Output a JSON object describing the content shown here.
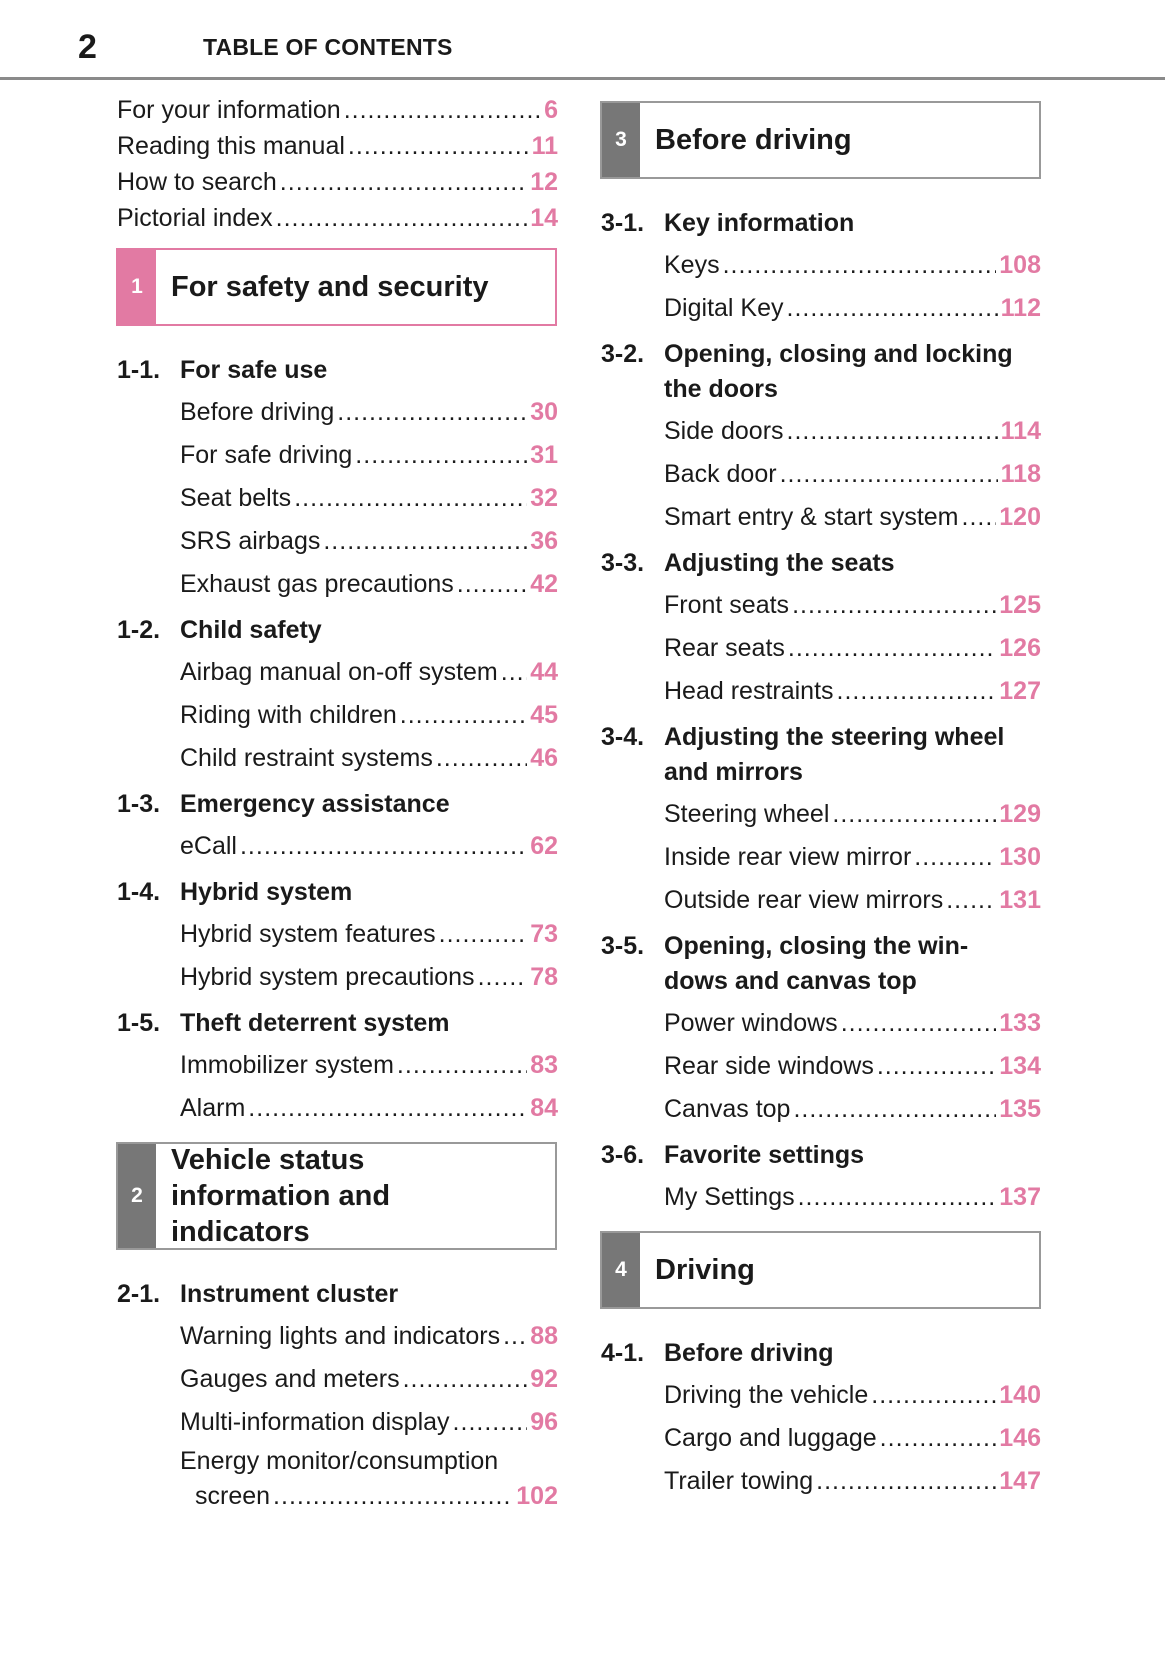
{
  "header": {
    "page_number": "2",
    "title": "TABLE OF CONTENTS"
  },
  "colors": {
    "accent_pink": "#e27aa3",
    "tab_gray": "#777777",
    "border_gray": "#999999"
  },
  "columns": [
    {
      "blocks": [
        {
          "type": "entries",
          "items": [
            {
              "label": "For your information",
              "page": "6"
            },
            {
              "label": "Reading this manual",
              "page": "11"
            },
            {
              "label": "How to search",
              "page": "12"
            },
            {
              "label": "Pictorial index",
              "page": "14"
            }
          ]
        },
        {
          "type": "chapter",
          "number": "1",
          "title_lines": [
            "For safety and security"
          ],
          "color": "#e27aa3",
          "border": "#e27aa3"
        },
        {
          "type": "section",
          "number": "1-1.",
          "title_lines": [
            "For safe use"
          ],
          "items": [
            {
              "label": "Before driving",
              "page": "30"
            },
            {
              "label": "For safe driving",
              "page": "31"
            },
            {
              "label": "Seat belts",
              "page": "32"
            },
            {
              "label": "SRS airbags",
              "page": "36"
            },
            {
              "label": "Exhaust gas precautions",
              "page": "42"
            }
          ]
        },
        {
          "type": "section",
          "number": "1-2.",
          "title_lines": [
            "Child safety"
          ],
          "items": [
            {
              "label": "Airbag manual on-off system",
              "page": "44"
            },
            {
              "label": "Riding with children",
              "page": "45"
            },
            {
              "label": "Child restraint systems",
              "page": "46"
            }
          ]
        },
        {
          "type": "section",
          "number": "1-3.",
          "title_lines": [
            "Emergency assistance"
          ],
          "items": [
            {
              "label": "eCall",
              "page": "62"
            }
          ]
        },
        {
          "type": "section",
          "number": "1-4.",
          "title_lines": [
            "Hybrid system"
          ],
          "items": [
            {
              "label": "Hybrid system features",
              "page": "73"
            },
            {
              "label": "Hybrid system precautions",
              "page": "78"
            }
          ]
        },
        {
          "type": "section",
          "number": "1-5.",
          "title_lines": [
            "Theft deterrent system"
          ],
          "items": [
            {
              "label": "Immobilizer system",
              "page": "83"
            },
            {
              "label": "Alarm",
              "page": "84"
            }
          ]
        },
        {
          "type": "chapter",
          "number": "2",
          "title_lines": [
            "Vehicle status",
            "information and",
            "indicators"
          ],
          "color": "#777777",
          "border": "#999999"
        },
        {
          "type": "section",
          "number": "2-1.",
          "title_lines": [
            "Instrument cluster"
          ],
          "items": [
            {
              "label": "Warning lights and indicators",
              "page": "88"
            },
            {
              "label": "Gauges and meters",
              "page": "92"
            },
            {
              "label": "Multi-information display",
              "page": "96"
            },
            {
              "label": "Energy monitor/consumption",
              "label2": "screen",
              "page": "102"
            }
          ]
        }
      ]
    },
    {
      "blocks": [
        {
          "type": "chapter",
          "number": "3",
          "title_lines": [
            "Before driving"
          ],
          "color": "#777777",
          "border": "#999999"
        },
        {
          "type": "section",
          "number": "3-1.",
          "title_lines": [
            "Key information"
          ],
          "items": [
            {
              "label": "Keys",
              "page": "108"
            },
            {
              "label": "Digital Key",
              "page": "112"
            }
          ]
        },
        {
          "type": "section",
          "number": "3-2.",
          "title_lines": [
            "Opening, closing and locking",
            "the doors"
          ],
          "items": [
            {
              "label": "Side doors",
              "page": "114"
            },
            {
              "label": "Back door",
              "page": "118"
            },
            {
              "label": "Smart entry & start system",
              "page": "120"
            }
          ]
        },
        {
          "type": "section",
          "number": "3-3.",
          "title_lines": [
            "Adjusting the seats"
          ],
          "items": [
            {
              "label": "Front seats",
              "page": "125"
            },
            {
              "label": "Rear seats",
              "page": "126"
            },
            {
              "label": "Head restraints",
              "page": "127"
            }
          ]
        },
        {
          "type": "section",
          "number": "3-4.",
          "title_lines": [
            "Adjusting the steering wheel",
            "and mirrors"
          ],
          "items": [
            {
              "label": "Steering wheel",
              "page": "129"
            },
            {
              "label": "Inside rear view mirror",
              "page": "130"
            },
            {
              "label": "Outside rear view mirrors",
              "page": "131"
            }
          ]
        },
        {
          "type": "section",
          "number": "3-5.",
          "title_lines": [
            "Opening, closing the win-",
            "dows and canvas top"
          ],
          "items": [
            {
              "label": "Power windows",
              "page": "133"
            },
            {
              "label": "Rear side windows",
              "page": "134"
            },
            {
              "label": "Canvas top",
              "page": "135"
            }
          ]
        },
        {
          "type": "section",
          "number": "3-6.",
          "title_lines": [
            "Favorite settings"
          ],
          "items": [
            {
              "label": "My Settings",
              "page": "137"
            }
          ]
        },
        {
          "type": "chapter",
          "number": "4",
          "title_lines": [
            "Driving"
          ],
          "color": "#777777",
          "border": "#999999"
        },
        {
          "type": "section",
          "number": "4-1.",
          "title_lines": [
            "Before driving"
          ],
          "items": [
            {
              "label": "Driving the vehicle",
              "page": "140"
            },
            {
              "label": "Cargo and luggage",
              "page": "146"
            },
            {
              "label": "Trailer towing",
              "page": "147"
            }
          ]
        }
      ]
    }
  ]
}
